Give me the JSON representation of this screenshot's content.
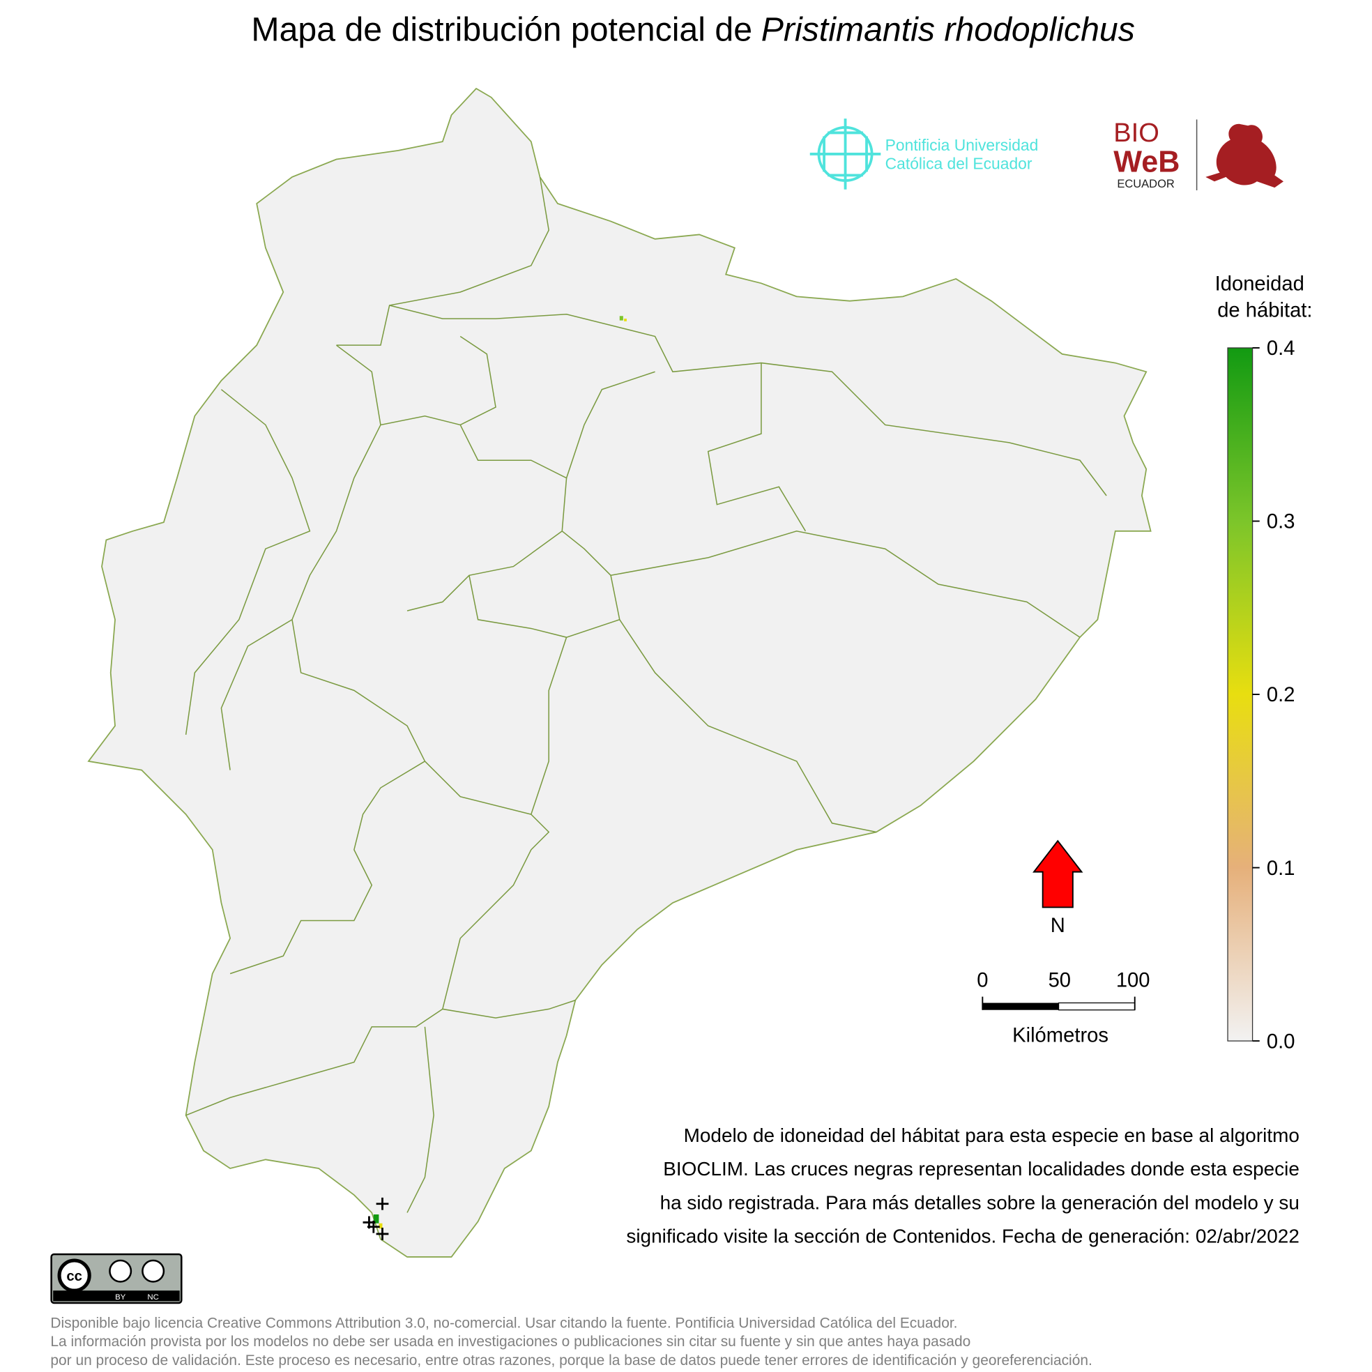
{
  "title": {
    "text": "Mapa de distribución potencial de",
    "species": "Pristimantis rhodoplichus"
  },
  "logos": {
    "puce": [
      "Pontificia Universidad",
      "Católica del Ecuador"
    ],
    "bioweb": [
      "BIO",
      "WeB",
      "ECUADOR"
    ]
  },
  "legend": {
    "title": [
      "Idoneidad",
      "de hábitat:"
    ],
    "lim": [
      0,
      0.4
    ],
    "ticks": [
      {
        "value": 0,
        "label": "0.0"
      },
      {
        "value": 0.1,
        "label": "0.1"
      },
      {
        "value": 0.2,
        "label": "0.2"
      },
      {
        "value": 0.3,
        "label": "0.3"
      },
      {
        "value": 0.4,
        "label": "0.4"
      }
    ],
    "colors": [
      "#f2f2f2",
      "#e6b07a",
      "#e8de10",
      "#7cc52a",
      "#129a12"
    ]
  },
  "north": "N",
  "scale": {
    "labels": [
      "0",
      "50",
      "100"
    ],
    "unit": "Kilómetros"
  },
  "description": [
    "Modelo de idoneidad del hábitat para esta especie en base al algoritmo",
    "BIOCLIM. Las cruces negras representan localidades donde esta especie",
    "ha sido registrada. Para más detalles sobre la generación del modelo y su",
    "significado visite la sección de Contenidos. Fecha de generación: 02/abr/2022"
  ],
  "license": {
    "badge": [
      "BY",
      "NC"
    ]
  },
  "footer": [
    "Disponible bajo licencia Creative Commons Attribution 3.0, no-comercial. Usar citando la fuente. Pontificia Universidad Católica del Ecuador.",
    "La información provista por los modelos no debe ser usada en investigaciones o publicaciones sin citar su fuente y sin que antes haya pasado",
    "por un proceso de validación. Este proceso es necesario, entre otras razones, porque la base de datos puede tener errores de identificación y georeferenciación."
  ]
}
